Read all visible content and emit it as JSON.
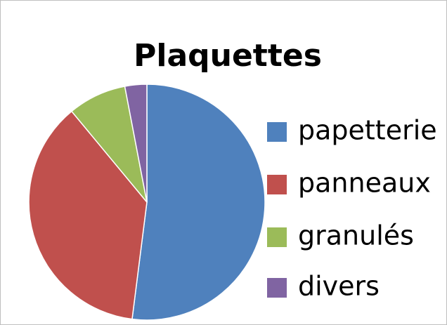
{
  "chart_data": {
    "type": "pie",
    "title": "Plaquettes",
    "categories": [
      "papetterie",
      "panneaux",
      "granulés",
      "divers"
    ],
    "values": [
      52,
      37,
      8,
      3
    ],
    "colors": [
      "#4f81bd",
      "#c0504d",
      "#9bbb59",
      "#8064a2"
    ],
    "legend": "right"
  }
}
